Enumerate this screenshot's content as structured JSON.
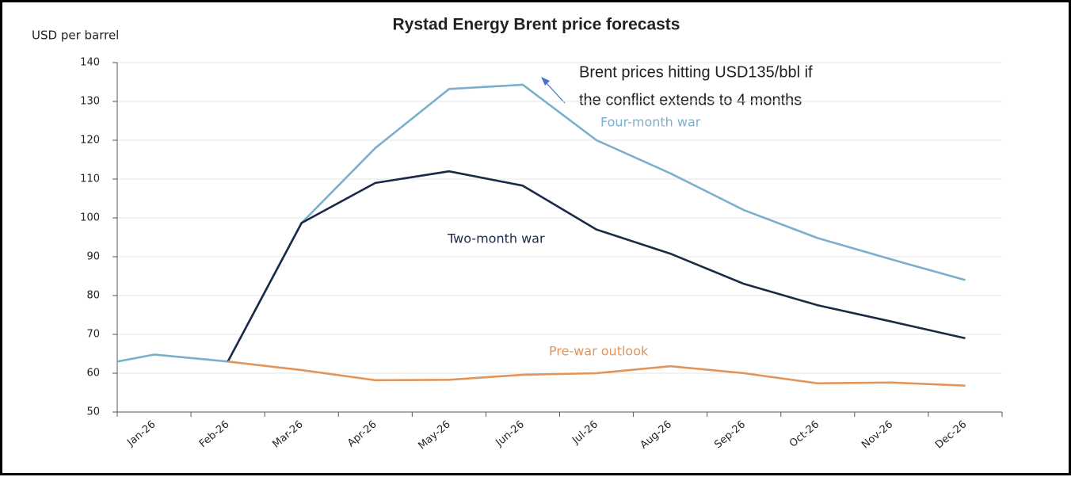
{
  "chart_data": {
    "type": "line",
    "title": "Rystad Energy Brent price forecasts",
    "y_label": "USD per barrel",
    "annotation": [
      "Brent prices hitting USD135/bbl if",
      "the conflict extends to 4 months"
    ],
    "categories": [
      null,
      "Jan-26",
      "Feb-26",
      "Mar-26",
      "Apr-26",
      "May-26",
      "Jun-26",
      "Jul-26",
      "Aug-26",
      "Sep-26",
      "Oct-26",
      "Nov-26",
      "Dec-26"
    ],
    "series": [
      {
        "name": "Four-month war",
        "color": "#7bb0cc",
        "values": [
          63,
          64.8,
          63,
          98.7,
          118,
          133.2,
          134.3,
          120,
          111.5,
          102,
          94.8,
          89.3,
          84
        ]
      },
      {
        "name": "Two-month war",
        "color": "#1b2a47",
        "values": [
          null,
          null,
          63,
          98.7,
          109,
          112,
          108.3,
          97,
          90.8,
          83,
          77.5,
          73.3,
          69
        ]
      },
      {
        "name": "Pre-war outlook",
        "color": "#e2955a",
        "values": [
          null,
          null,
          63,
          60.8,
          58.2,
          58.3,
          59.6,
          60,
          61.8,
          60,
          57.4,
          57.6,
          56.8
        ]
      }
    ],
    "ylim": [
      50,
      140
    ],
    "yticks": [
      50,
      60,
      70,
      80,
      90,
      100,
      110,
      120,
      130,
      140
    ],
    "grid": true
  }
}
